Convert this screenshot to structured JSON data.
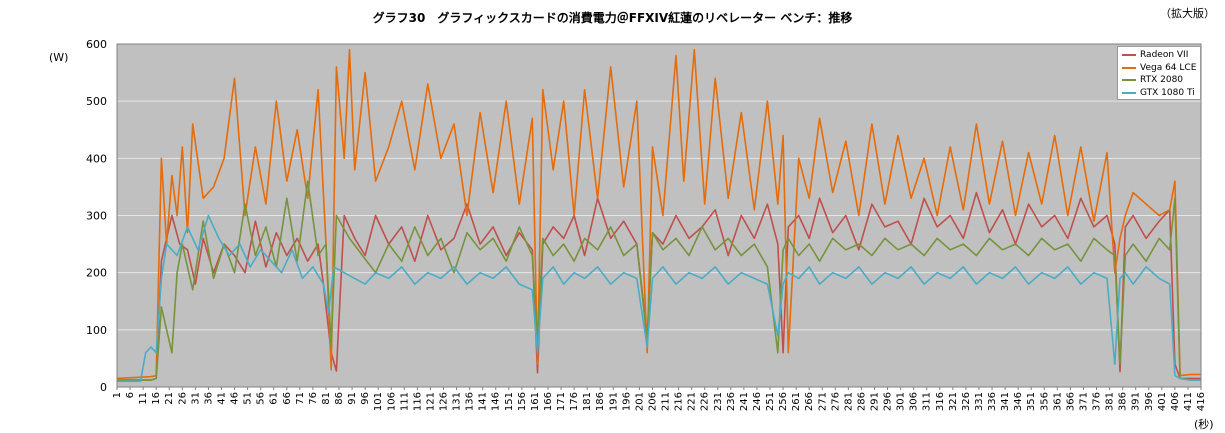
{
  "title": "グラフ30　グラフィックスカードの消費電力＠FFXIV紅蓮のリベレーター ベンチ：推移",
  "edition_label": "（拡大版）",
  "chart_data": {
    "type": "line",
    "title": "グラフ30　グラフィックスカードの消費電力＠FFXIV紅蓮のリベレーター ベンチ：推移",
    "ylabel": "(W)",
    "xlabel": "(秒)",
    "ylim": [
      0,
      600
    ],
    "yticks": [
      0,
      100,
      200,
      300,
      400,
      500,
      600
    ],
    "xlim": [
      1,
      416
    ],
    "xticks": [
      1,
      6,
      11,
      16,
      21,
      26,
      31,
      36,
      41,
      46,
      51,
      56,
      61,
      66,
      71,
      76,
      81,
      86,
      91,
      96,
      101,
      106,
      111,
      116,
      121,
      126,
      131,
      136,
      141,
      146,
      151,
      156,
      161,
      166,
      171,
      176,
      181,
      186,
      191,
      196,
      201,
      206,
      211,
      216,
      221,
      226,
      231,
      236,
      241,
      246,
      251,
      256,
      261,
      266,
      271,
      276,
      281,
      286,
      291,
      296,
      301,
      306,
      311,
      316,
      321,
      326,
      331,
      336,
      341,
      346,
      351,
      356,
      361,
      366,
      371,
      376,
      381,
      386,
      391,
      396,
      401,
      406,
      411,
      416
    ],
    "grid": "horizontal",
    "legend": "top-right",
    "series": [
      {
        "name": "Radeon VII",
        "color": "#c0504d",
        "x": [
          1,
          14,
          16,
          18,
          20,
          22,
          25,
          28,
          31,
          34,
          38,
          42,
          46,
          50,
          54,
          58,
          62,
          66,
          70,
          74,
          78,
          80,
          83,
          85,
          88,
          92,
          96,
          100,
          105,
          110,
          115,
          120,
          125,
          130,
          135,
          140,
          145,
          150,
          155,
          160,
          162,
          164,
          168,
          172,
          176,
          180,
          185,
          190,
          195,
          200,
          204,
          206,
          210,
          215,
          220,
          225,
          230,
          235,
          240,
          245,
          250,
          254,
          256,
          258,
          262,
          266,
          270,
          275,
          280,
          285,
          290,
          295,
          300,
          305,
          310,
          315,
          320,
          325,
          330,
          335,
          340,
          345,
          350,
          355,
          360,
          365,
          370,
          375,
          380,
          383,
          385,
          387,
          390,
          395,
          400,
          404,
          406,
          408,
          412,
          416
        ],
        "y": [
          12,
          12,
          15,
          220,
          260,
          300,
          250,
          240,
          180,
          260,
          200,
          250,
          230,
          200,
          290,
          210,
          270,
          230,
          260,
          220,
          250,
          180,
          60,
          28,
          300,
          260,
          230,
          300,
          250,
          280,
          220,
          300,
          240,
          260,
          320,
          250,
          280,
          230,
          270,
          240,
          25,
          250,
          280,
          260,
          300,
          230,
          330,
          260,
          290,
          250,
          90,
          270,
          250,
          300,
          260,
          280,
          310,
          230,
          300,
          260,
          320,
          250,
          60,
          280,
          300,
          260,
          330,
          270,
          300,
          240,
          320,
          280,
          290,
          250,
          330,
          280,
          300,
          260,
          340,
          270,
          310,
          250,
          320,
          280,
          300,
          260,
          330,
          280,
          300,
          250,
          27,
          280,
          300,
          260,
          290,
          310,
          40,
          15,
          15,
          15
        ]
      },
      {
        "name": "Vega 64 LCE",
        "color": "#e46c0a",
        "x": [
          1,
          14,
          16,
          18,
          20,
          22,
          24,
          26,
          28,
          30,
          34,
          38,
          42,
          46,
          50,
          54,
          58,
          62,
          66,
          70,
          74,
          78,
          81,
          83,
          85,
          88,
          90,
          92,
          96,
          100,
          105,
          110,
          115,
          120,
          125,
          130,
          135,
          140,
          145,
          150,
          155,
          160,
          162,
          164,
          168,
          172,
          176,
          180,
          185,
          190,
          195,
          200,
          204,
          206,
          210,
          215,
          218,
          222,
          226,
          230,
          235,
          240,
          245,
          250,
          254,
          256,
          258,
          262,
          266,
          270,
          275,
          280,
          285,
          290,
          295,
          300,
          305,
          310,
          315,
          320,
          325,
          330,
          335,
          340,
          345,
          350,
          355,
          360,
          365,
          370,
          375,
          380,
          383,
          385,
          387,
          390,
          395,
          400,
          404,
          406,
          408,
          412,
          416
        ],
        "y": [
          15,
          18,
          20,
          400,
          250,
          370,
          300,
          420,
          270,
          460,
          330,
          350,
          400,
          540,
          300,
          420,
          320,
          500,
          360,
          450,
          330,
          520,
          250,
          30,
          560,
          400,
          590,
          380,
          550,
          360,
          420,
          500,
          380,
          530,
          400,
          460,
          300,
          480,
          340,
          500,
          320,
          470,
          40,
          520,
          380,
          500,
          300,
          520,
          330,
          560,
          350,
          500,
          60,
          420,
          300,
          580,
          360,
          590,
          320,
          540,
          330,
          480,
          310,
          500,
          320,
          440,
          60,
          400,
          330,
          470,
          340,
          430,
          300,
          460,
          320,
          440,
          330,
          400,
          300,
          420,
          310,
          460,
          320,
          430,
          300,
          410,
          320,
          440,
          300,
          420,
          290,
          410,
          200,
          260,
          300,
          340,
          320,
          300,
          310,
          360,
          20,
          22,
          22
        ]
      },
      {
        "name": "RTX 2080",
        "color": "#77933c",
        "x": [
          1,
          14,
          16,
          18,
          20,
          22,
          24,
          26,
          30,
          34,
          38,
          42,
          46,
          50,
          54,
          58,
          62,
          66,
          70,
          74,
          78,
          81,
          83,
          85,
          90,
          95,
          100,
          105,
          110,
          115,
          120,
          125,
          130,
          135,
          140,
          145,
          150,
          155,
          160,
          162,
          164,
          168,
          172,
          176,
          180,
          185,
          190,
          195,
          200,
          204,
          206,
          210,
          215,
          220,
          225,
          230,
          235,
          240,
          245,
          250,
          254,
          256,
          258,
          262,
          266,
          270,
          275,
          280,
          285,
          290,
          295,
          300,
          305,
          310,
          315,
          320,
          325,
          330,
          335,
          340,
          345,
          350,
          355,
          360,
          365,
          370,
          375,
          380,
          383,
          385,
          387,
          390,
          395,
          400,
          404,
          406,
          408,
          412,
          416
        ],
        "y": [
          12,
          12,
          15,
          140,
          100,
          60,
          200,
          250,
          170,
          290,
          190,
          250,
          200,
          320,
          230,
          280,
          210,
          330,
          220,
          360,
          230,
          250,
          70,
          300,
          260,
          230,
          200,
          250,
          220,
          280,
          230,
          260,
          200,
          270,
          240,
          260,
          220,
          280,
          230,
          80,
          260,
          230,
          250,
          220,
          260,
          240,
          280,
          230,
          250,
          80,
          270,
          240,
          260,
          230,
          280,
          240,
          260,
          230,
          250,
          210,
          60,
          240,
          260,
          230,
          250,
          220,
          260,
          240,
          250,
          230,
          260,
          240,
          250,
          230,
          260,
          240,
          250,
          230,
          260,
          240,
          250,
          230,
          260,
          240,
          250,
          220,
          260,
          240,
          230,
          40,
          230,
          250,
          220,
          260,
          240,
          330,
          15,
          12,
          12
        ]
      },
      {
        "name": "GTX 1080 Ti",
        "color": "#4bacc6",
        "x": [
          1,
          10,
          12,
          14,
          16,
          18,
          20,
          24,
          28,
          32,
          36,
          40,
          44,
          48,
          52,
          56,
          60,
          64,
          68,
          72,
          76,
          80,
          82,
          84,
          88,
          92,
          96,
          100,
          105,
          110,
          115,
          120,
          125,
          130,
          135,
          140,
          145,
          150,
          155,
          160,
          162,
          164,
          168,
          172,
          176,
          180,
          185,
          190,
          195,
          200,
          204,
          206,
          210,
          215,
          220,
          225,
          230,
          235,
          240,
          245,
          250,
          254,
          256,
          258,
          262,
          266,
          270,
          275,
          280,
          285,
          290,
          295,
          300,
          305,
          310,
          315,
          320,
          325,
          330,
          335,
          340,
          345,
          350,
          355,
          360,
          365,
          370,
          375,
          380,
          383,
          385,
          387,
          390,
          395,
          400,
          404,
          406,
          408,
          412,
          416
        ],
        "y": [
          10,
          10,
          60,
          70,
          60,
          190,
          250,
          230,
          280,
          240,
          300,
          260,
          230,
          250,
          210,
          240,
          220,
          200,
          240,
          190,
          210,
          180,
          130,
          210,
          200,
          190,
          180,
          200,
          190,
          210,
          180,
          200,
          190,
          210,
          180,
          200,
          190,
          210,
          180,
          170,
          60,
          190,
          210,
          180,
          200,
          190,
          210,
          180,
          200,
          190,
          70,
          190,
          210,
          180,
          200,
          190,
          210,
          180,
          200,
          190,
          180,
          90,
          180,
          200,
          190,
          210,
          180,
          200,
          190,
          210,
          180,
          200,
          190,
          210,
          180,
          200,
          190,
          210,
          180,
          200,
          190,
          210,
          180,
          200,
          190,
          210,
          180,
          200,
          190,
          40,
          190,
          200,
          180,
          210,
          190,
          180,
          20,
          15,
          12,
          12
        ]
      }
    ]
  }
}
